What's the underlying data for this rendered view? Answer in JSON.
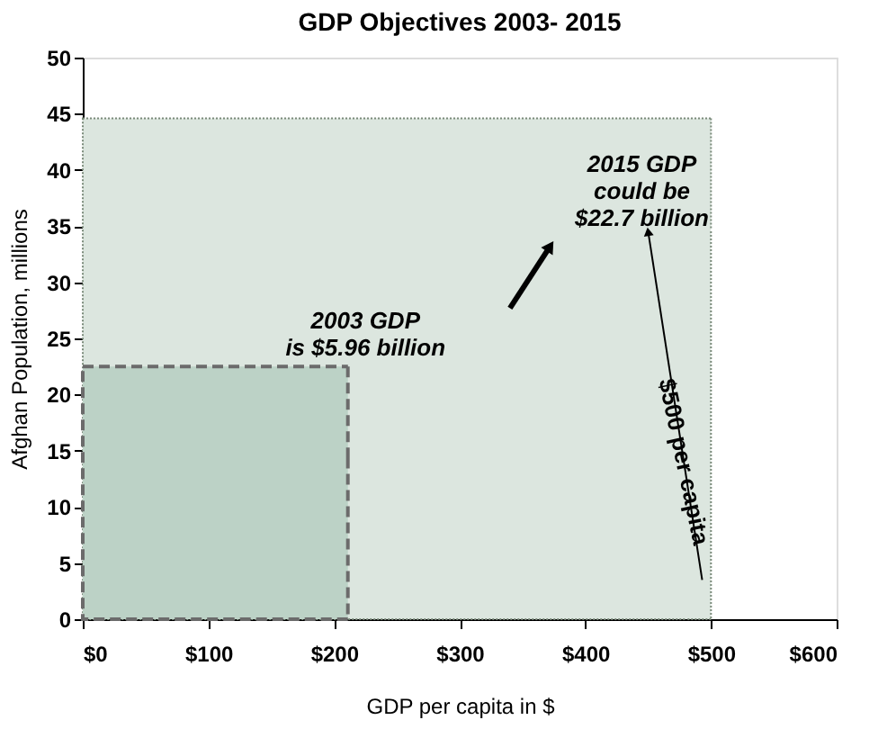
{
  "chart_data": {
    "type": "area",
    "title": "GDP Objectives 2003- 2015",
    "xlabel": "GDP per capita in $",
    "ylabel": "Afghan Population, millions",
    "series": [
      {
        "x": [
          0,
          500
        ],
        "values": [
          44.6,
          44.6
        ],
        "color": "#dce6df",
        "line_style": "dotted"
      },
      {
        "x": [
          0,
          211
        ],
        "values": [
          22.5,
          22.5
        ],
        "color": "#bcd2c6",
        "line_style": "dashed"
      }
    ],
    "xlim": [
      0,
      600
    ],
    "ylim": [
      0,
      50
    ],
    "xticks": [
      {
        "value": 0,
        "label": "$0"
      },
      {
        "value": 100,
        "label": "$100"
      },
      {
        "value": 200,
        "label": "$200"
      },
      {
        "value": 300,
        "label": "$300"
      },
      {
        "value": 400,
        "label": "$400"
      },
      {
        "value": 500,
        "label": "$500"
      },
      {
        "value": 600,
        "label": "$600"
      }
    ],
    "yticks": [
      0,
      5,
      10,
      15,
      20,
      25,
      30,
      35,
      40,
      45,
      50
    ],
    "grid": false,
    "annotations": [
      "2003 GDP\nis  $5.96 billion",
      "2015 GDP\ncould be\n$22.7 billion",
      "$500 per capita"
    ]
  }
}
